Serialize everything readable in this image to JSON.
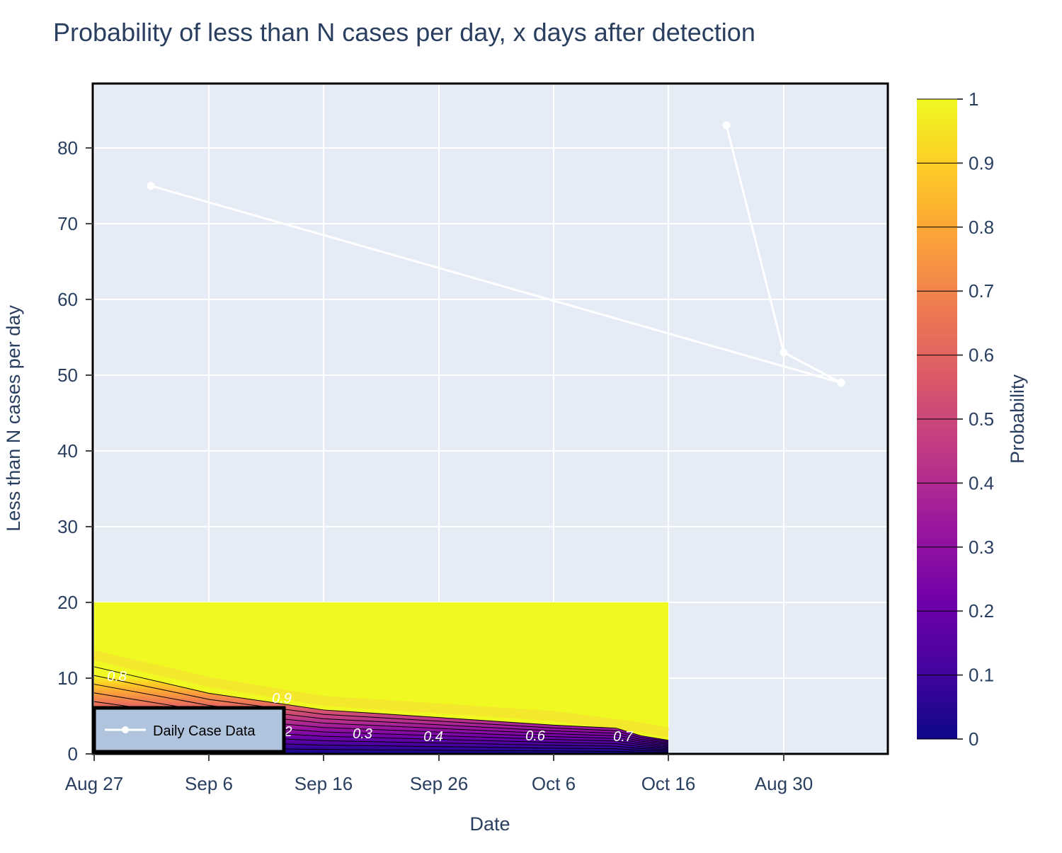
{
  "chart_data": {
    "type": "contour",
    "title": "Probability of less than N cases per day, x days after detection",
    "xlabel": "Date",
    "ylabel": "Less than N cases per day",
    "x_tick_labels": [
      "Aug 27",
      "Sep 6",
      "Sep 16",
      "Sep 26",
      "Oct 6",
      "Oct 16",
      "Aug 30"
    ],
    "y_ticks": [
      0,
      10,
      20,
      30,
      40,
      50,
      60,
      70,
      80
    ],
    "ylim": [
      0,
      88.5
    ],
    "grid": true,
    "colorbar": {
      "title": "Probability",
      "colorscale": "plasma",
      "range": [
        0,
        1
      ],
      "ticks": [
        "0",
        "0.1",
        "0.2",
        "0.3",
        "0.4",
        "0.5",
        "0.6",
        "0.7",
        "0.8",
        "0.9",
        "1"
      ]
    },
    "contour": {
      "x_start": "Aug 27",
      "x_end": "Oct 16",
      "y_range": [
        0,
        20
      ],
      "labels": [
        "0.8",
        "0.9",
        "2",
        "0.3",
        "0.4",
        "0.6",
        "0.7"
      ]
    },
    "series": [
      {
        "name": "Daily Case Data",
        "mode": "lines+markers",
        "color": "#ffffff",
        "points": [
          {
            "x": "Aug 22",
            "y": 83
          },
          {
            "x": "Aug 30",
            "y": 53
          },
          {
            "x": "Sep 1",
            "y": 49
          },
          {
            "x": "Sep 1",
            "y": 49
          },
          {
            "x": "Sep 1",
            "y": 75
          }
        ]
      }
    ],
    "legend": {
      "position": "bottom-left",
      "background": "#b0c4de"
    }
  }
}
